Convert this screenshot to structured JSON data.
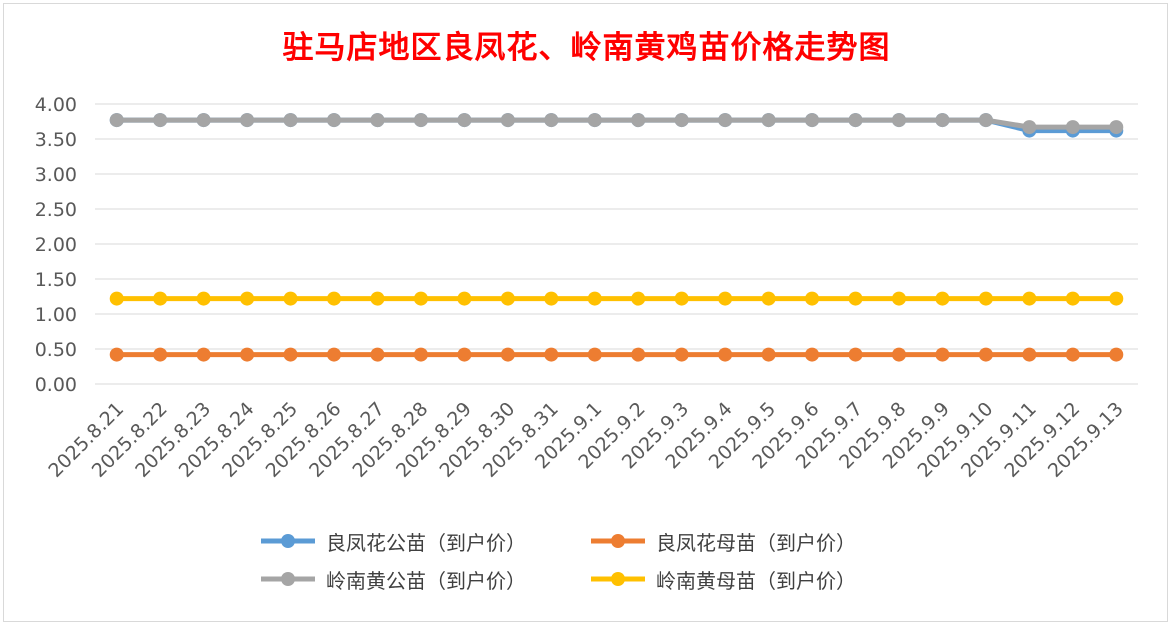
{
  "chart_data": {
    "type": "line",
    "title": "驻马店地区良凤花、岭南黄鸡苗价格走势图",
    "xlabel": "",
    "ylabel": "",
    "ylim": [
      0,
      4
    ],
    "yticks": [
      "0.00",
      "0.50",
      "1.00",
      "1.50",
      "2.00",
      "2.50",
      "3.00",
      "3.50",
      "4.00"
    ],
    "grid": true,
    "legend_position": "bottom",
    "categories": [
      "2025.8.21",
      "2025.8.22",
      "2025.8.23",
      "2025.8.24",
      "2025.8.25",
      "2025.8.26",
      "2025.8.27",
      "2025.8.28",
      "2025.8.29",
      "2025.8.30",
      "2025.8.31",
      "2025.9.1",
      "2025.9.2",
      "2025.9.3",
      "2025.9.4",
      "2025.9.5",
      "2025.9.6",
      "2025.9.7",
      "2025.9.8",
      "2025.9.9",
      "2025.9.10",
      "2025.9.11",
      "2025.9.12",
      "2025.9.13"
    ],
    "series": [
      {
        "name": "良凤花公苗（到户价）",
        "color": "#5b9bd5",
        "values": [
          3.77,
          3.77,
          3.77,
          3.77,
          3.77,
          3.77,
          3.77,
          3.77,
          3.77,
          3.77,
          3.77,
          3.77,
          3.77,
          3.77,
          3.77,
          3.77,
          3.77,
          3.77,
          3.77,
          3.77,
          3.77,
          3.62,
          3.62,
          3.62
        ]
      },
      {
        "name": "良凤花母苗（到户价）",
        "color": "#ed7d31",
        "values": [
          0.42,
          0.42,
          0.42,
          0.42,
          0.42,
          0.42,
          0.42,
          0.42,
          0.42,
          0.42,
          0.42,
          0.42,
          0.42,
          0.42,
          0.42,
          0.42,
          0.42,
          0.42,
          0.42,
          0.42,
          0.42,
          0.42,
          0.42,
          0.42
        ]
      },
      {
        "name": "岭南黄公苗（到户价）",
        "color": "#a5a5a5",
        "values": [
          3.77,
          3.77,
          3.77,
          3.77,
          3.77,
          3.77,
          3.77,
          3.77,
          3.77,
          3.77,
          3.77,
          3.77,
          3.77,
          3.77,
          3.77,
          3.77,
          3.77,
          3.77,
          3.77,
          3.77,
          3.77,
          3.67,
          3.67,
          3.67
        ]
      },
      {
        "name": "岭南黄母苗（到户价）",
        "color": "#ffc000",
        "values": [
          1.22,
          1.22,
          1.22,
          1.22,
          1.22,
          1.22,
          1.22,
          1.22,
          1.22,
          1.22,
          1.22,
          1.22,
          1.22,
          1.22,
          1.22,
          1.22,
          1.22,
          1.22,
          1.22,
          1.22,
          1.22,
          1.22,
          1.22,
          1.22
        ]
      }
    ]
  }
}
